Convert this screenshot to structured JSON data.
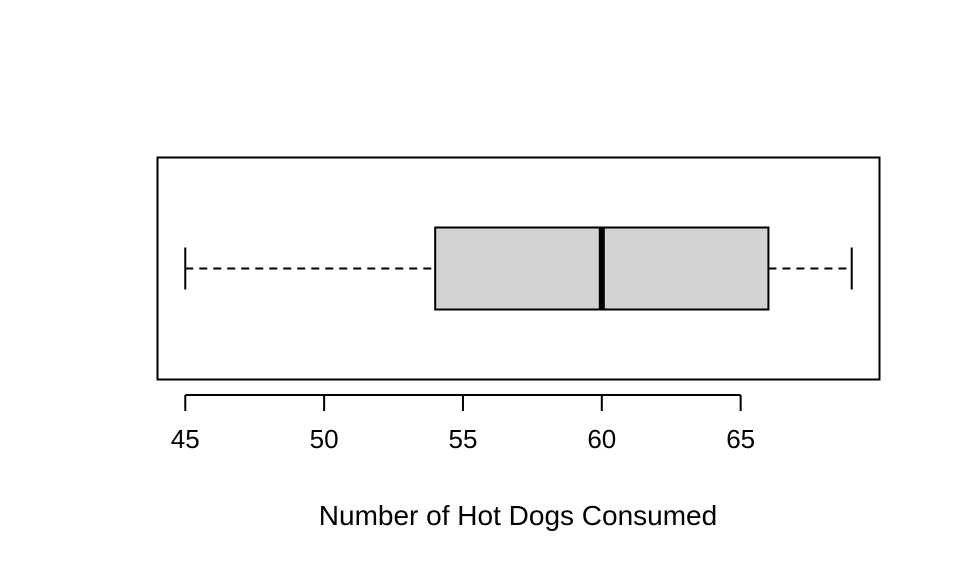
{
  "chart_data": {
    "type": "boxplot",
    "orientation": "horizontal",
    "title": "",
    "xlabel": "Number of Hot Dogs Consumed",
    "ylabel": "",
    "xlim": [
      44.0,
      70.0
    ],
    "x_ticks": [
      45,
      50,
      55,
      60,
      65
    ],
    "x_tick_labels": [
      "45",
      "50",
      "55",
      "60",
      "65"
    ],
    "box": {
      "min": 45,
      "q1": 54,
      "median": 60,
      "q3": 66,
      "max": 69
    },
    "colors": {
      "box_fill": "#d3d3d3",
      "stroke": "#000000"
    }
  }
}
